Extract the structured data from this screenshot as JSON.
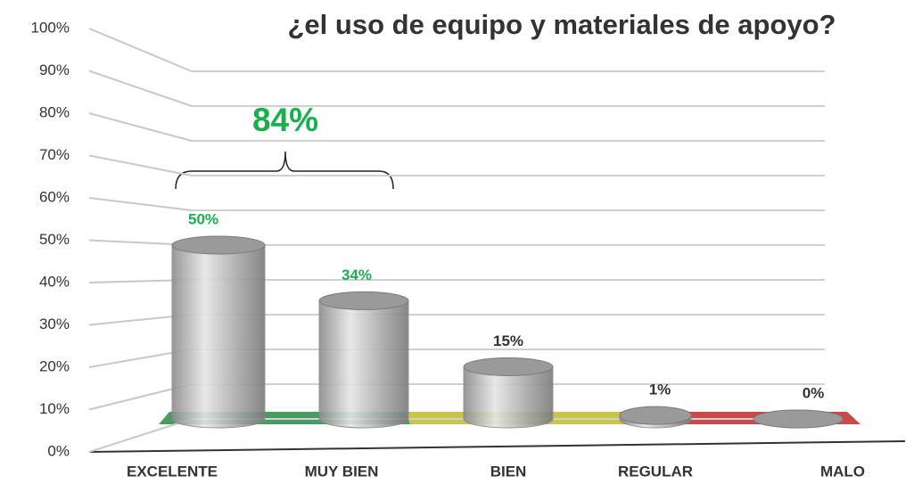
{
  "chart_data": {
    "type": "bar",
    "title": "¿el uso de equipo y materiales de apoyo?",
    "categories": [
      "EXCELENTE",
      "MUY BIEN",
      "BIEN",
      "REGULAR",
      "MALO"
    ],
    "values": [
      50,
      34,
      15,
      1,
      0
    ],
    "value_labels": [
      "50%",
      "34%",
      "15%",
      "1%",
      "0%"
    ],
    "value_label_colors": [
      "#1aae4f",
      "#1aae4f",
      "#333333",
      "#333333",
      "#333333"
    ],
    "color": "#a6a6a6",
    "annotation": "84%",
    "ylim": [
      0,
      100
    ],
    "yticks": [
      {
        "value": 0,
        "label": "0%"
      },
      {
        "value": 10,
        "label": "10%"
      },
      {
        "value": 20,
        "label": "20%"
      },
      {
        "value": 30,
        "label": "30%"
      },
      {
        "value": 40,
        "label": "40%"
      },
      {
        "value": 50,
        "label": "50%"
      },
      {
        "value": 60,
        "label": "60%"
      },
      {
        "value": 70,
        "label": "70%"
      },
      {
        "value": 80,
        "label": "80%"
      },
      {
        "value": 90,
        "label": "90%"
      },
      {
        "value": 100,
        "label": "100%"
      }
    ],
    "grid": true
  }
}
